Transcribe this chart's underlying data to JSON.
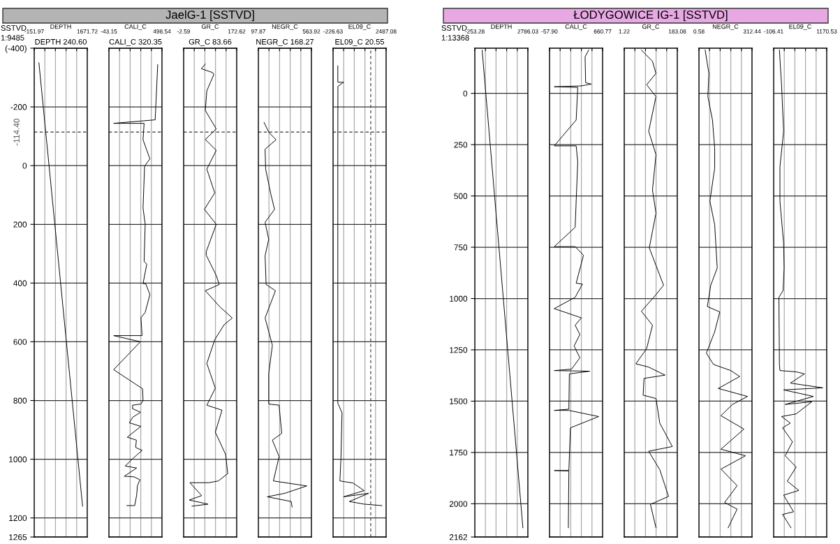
{
  "chart_data": [
    {
      "type": "line",
      "xlabel": "DEPTH",
      "subtitle": "DEPTH 240.60",
      "annotations": [
        "SSTVD",
        "1:9485"
      ],
      "xlim": [
        -151.97,
        1671.72
      ],
      "xticks": [
        {
          "value": -151.97,
          "label": "-151.97"
        },
        {
          "value": 212.77,
          "label": null
        },
        {
          "value": 577.51,
          "label": null
        },
        {
          "value": 942.24,
          "label": null
        },
        {
          "value": 1306.98,
          "label": null
        },
        {
          "value": 1671.72,
          "label": "1671.72"
        }
      ],
      "ylim": [
        1265,
        -400
      ],
      "yticks": [
        {
          "value": -400,
          "label": "(-400)"
        },
        -200,
        0,
        200,
        400,
        600,
        800,
        1000,
        1200,
        1265
      ],
      "grid": true,
      "ref_lines": [
        {
          "axis": "y",
          "value": -114.4,
          "label": "-114.40",
          "line_style": "dashed",
          "color": "#333333"
        }
      ],
      "series": [
        {
          "color": "#000000",
          "x": [
            10,
            1510
          ],
          "values": [
            -350,
            1160
          ]
        }
      ]
    },
    {
      "type": "line",
      "xlabel": "CALI_C",
      "subtitle": "CALI_C 320.35",
      "tick_labels": "x",
      "xlim": [
        -43.15,
        498.54
      ],
      "xticks": [
        {
          "value": -43.15,
          "label": "-43.15"
        },
        {
          "value": 65.19,
          "label": null
        },
        {
          "value": 173.53,
          "label": null
        },
        {
          "value": 281.86,
          "label": null
        },
        {
          "value": 390.2,
          "label": null
        },
        {
          "value": 498.54,
          "label": "498.54"
        }
      ],
      "ylim": [
        1265,
        -400
      ],
      "yticks": [
        -400,
        -200,
        0,
        200,
        400,
        600,
        800,
        1000,
        1200,
        1265
      ],
      "grid": true,
      "ref_lines": [
        {
          "axis": "y",
          "value": -114.4,
          "line_style": "dashed",
          "color": "#333333"
        }
      ],
      "series": [
        {
          "color": "#000000",
          "x": [
            455,
            429,
            5,
            316,
            305,
            375,
            321,
            305,
            327,
            316,
            343,
            305,
            332,
            375,
            327,
            284,
            295,
            5,
            278,
            5,
            300,
            305,
            284,
            198,
            198,
            280,
            200,
            165,
            283,
            144,
            237,
            230,
            295,
            213,
            123,
            240,
            113,
            213,
            273,
            248,
            240,
            220,
            140
          ],
          "values": [
            -344,
            -156,
            -144,
            -144,
            -88,
            -23,
            2,
            144,
            200,
            326,
            336,
            402,
            402,
            439,
            500,
            518,
            579,
            579,
            600,
            695,
            760,
            800,
            812,
            816,
            828,
            840,
            857,
            876,
            888,
            925,
            935,
            960,
            970,
            994,
            1023,
            1030,
            1058,
            1060,
            1070,
            1090,
            1122,
            1158,
            1158
          ]
        }
      ]
    },
    {
      "type": "line",
      "title": "JaelG-1 [SSTVD]",
      "xlabel": "GR_C",
      "subtitle": "GR_C 83.66",
      "tick_labels": "x",
      "xlim": [
        -2.59,
        172.62
      ],
      "xticks": [
        {
          "value": -2.59,
          "label": "-2.59"
        },
        {
          "value": 32.45,
          "label": null
        },
        {
          "value": 67.5,
          "label": null
        },
        {
          "value": 102.54,
          "label": null
        },
        {
          "value": 137.58,
          "label": null
        },
        {
          "value": 172.62,
          "label": "172.62"
        }
      ],
      "ylim": [
        1265,
        -400
      ],
      "yticks": [
        -400,
        -200,
        0,
        200,
        400,
        600,
        800,
        1000,
        1200,
        1265
      ],
      "grid": true,
      "ref_lines": [
        {
          "axis": "y",
          "value": -114.4,
          "line_style": "dashed",
          "color": "#333333"
        }
      ],
      "series": [
        {
          "color": "#000000",
          "x": [
            69,
            56,
            93,
            97,
            74,
            69,
            105,
            69,
            105,
            74,
            100,
            66,
            105,
            72,
            72,
            105,
            115,
            69,
            117,
            158,
            131,
            100,
            74,
            102,
            74,
            124,
            102,
            136,
            143,
            112,
            81,
            18,
            57,
            16,
            78,
            25
          ],
          "values": [
            -346,
            -330,
            -317,
            -310,
            -255,
            -188,
            -125,
            -89,
            -52,
            12,
            93,
            149,
            200,
            293,
            305,
            374,
            405,
            426,
            481,
            519,
            542,
            593,
            674,
            758,
            816,
            833,
            908,
            984,
            1049,
            1074,
            1080,
            1080,
            1124,
            1139,
            1153,
            1160
          ]
        }
      ]
    },
    {
      "type": "line",
      "xlabel": "NEGR_C",
      "subtitle": "NEGR_C 168.27",
      "tick_labels": "x",
      "xlim": [
        97.87,
        563.92
      ],
      "xticks": [
        {
          "value": 97.87,
          "label": "97.87"
        },
        {
          "value": 191.08,
          "label": null
        },
        {
          "value": 284.29,
          "label": null
        },
        {
          "value": 377.5,
          "label": null
        },
        {
          "value": 470.71,
          "label": null
        },
        {
          "value": 563.92,
          "label": "563.92"
        }
      ],
      "ylim": [
        1265,
        -400
      ],
      "yticks": [
        -400,
        -200,
        0,
        200,
        400,
        600,
        800,
        1000,
        1200,
        1265
      ],
      "grid": true,
      "ref_lines": [
        {
          "axis": "y",
          "value": -114.4,
          "line_style": "dashed",
          "color": "#333333"
        }
      ],
      "series": [
        {
          "color": "#000000",
          "x": [
            148,
            189,
            253,
            157,
            162,
            208,
            240,
            157,
            189,
            157,
            166,
            248,
            157,
            221,
            189,
            189,
            280,
            303,
            221,
            280,
            230,
            523,
            331,
            176,
            386,
            394
          ],
          "values": [
            -147,
            -114,
            -88,
            -56,
            12,
            98,
            149,
            193,
            251,
            307,
            405,
            426,
            519,
            612,
            709,
            812,
            816,
            912,
            935,
            991,
            1074,
            1091,
            1116,
            1128,
            1144,
            1163
          ]
        }
      ]
    },
    {
      "type": "line",
      "xlabel": "EL09_C",
      "subtitle": "EL09_C 20.55",
      "tick_labels": "x",
      "xlim": [
        -226.63,
        2487.08
      ],
      "xticks": [
        {
          "value": -226.63,
          "label": "-226.63"
        },
        {
          "value": 316.11,
          "label": null
        },
        {
          "value": 858.85,
          "label": null
        },
        {
          "value": 1401.6,
          "label": null
        },
        {
          "value": 1944.34,
          "label": null
        },
        {
          "value": 2487.08,
          "label": "2487.08"
        }
      ],
      "ylim": [
        1265,
        -400
      ],
      "yticks": [
        -400,
        -200,
        0,
        200,
        400,
        600,
        800,
        1000,
        1200,
        1265
      ],
      "grid": true,
      "ref_lines": [
        {
          "axis": "y",
          "value": -114.4,
          "line_style": "dashed",
          "color": "#333333"
        },
        {
          "axis": "x",
          "value": 1700,
          "line_style": "dashed",
          "color": "#333333"
        }
      ],
      "series": [
        {
          "color": "#000000",
          "x": [
            16,
            16,
            311,
            21,
            16,
            16,
            16,
            16,
            230,
            176,
            123,
            794,
            1360,
            311,
            1600,
            606,
            1360,
            2272
          ],
          "values": [
            -340,
            -284,
            -284,
            -270,
            -20,
            160,
            405,
            809,
            842,
            997,
            1074,
            1081,
            1107,
            1128,
            1116,
            1144,
            1153,
            1158
          ]
        }
      ]
    },
    {
      "type": "line",
      "xlabel": "DEPTH",
      "annotations": [
        "SSTVD",
        "1:13368"
      ],
      "xlim": [
        -253.28,
        2786.03
      ],
      "xticks": [
        {
          "value": -253.28,
          "label": "-253.28"
        },
        {
          "value": 354.58,
          "label": null
        },
        {
          "value": 962.44,
          "label": null
        },
        {
          "value": 1570.31,
          "label": null
        },
        {
          "value": 2178.17,
          "label": null
        },
        {
          "value": 2786.03,
          "label": "2786.03"
        }
      ],
      "ylim": [
        2162,
        -220
      ],
      "yticks": [
        0,
        250,
        500,
        750,
        1000,
        1250,
        1500,
        1750,
        2000,
        2162
      ],
      "grid": true,
      "series": [
        {
          "color": "#000000",
          "x": [
            166,
            2501
          ],
          "values": [
            -210,
            2117
          ]
        }
      ]
    },
    {
      "type": "line",
      "xlabel": "CALI_C",
      "tick_labels": "x",
      "xlim": [
        -57.9,
        660.77
      ],
      "xticks": [
        {
          "value": -57.9,
          "label": "-57.90"
        },
        {
          "value": 85.83,
          "label": null
        },
        {
          "value": 229.57,
          "label": null
        },
        {
          "value": 373.3,
          "label": null
        },
        {
          "value": 517.04,
          "label": null
        },
        {
          "value": 660.77,
          "label": "660.77"
        }
      ],
      "ylim": [
        2162,
        -220
      ],
      "yticks": [
        0,
        250,
        500,
        750,
        1000,
        1250,
        1500,
        1750,
        2000,
        2162
      ],
      "grid": true,
      "series": [
        {
          "color": "#000000",
          "x": [
            473,
            424,
            431,
            509,
            367,
            6,
            324,
            303,
            6,
            303,
            324,
            289,
            6,
            289,
            402,
            303,
            388,
            289,
            6,
            374,
            289,
            353,
            275,
            353,
            240,
            6,
            487,
            211,
            204,
            6,
            204,
            608,
            225,
            204,
            6,
            204,
            197
          ],
          "values": [
            -211,
            -178,
            -52,
            -45,
            -36,
            -32,
            -29,
            130,
            256,
            256,
            334,
            653,
            747,
            747,
            789,
            925,
            930,
            994,
            1049,
            1094,
            1130,
            1175,
            1231,
            1289,
            1344,
            1351,
            1354,
            1367,
            1539,
            1545,
            1545,
            1575,
            1630,
            1838,
            1838,
            1840,
            2117
          ]
        }
      ]
    },
    {
      "type": "line",
      "title": "ŁODYGOWICE IG-1 [SSTVD]",
      "xlabel": "GR_C",
      "tick_labels": "x",
      "xlim": [
        1.22,
        183.08
      ],
      "xticks": [
        {
          "value": 1.22,
          "label": "1.22"
        },
        {
          "value": 37.59,
          "label": null
        },
        {
          "value": 73.96,
          "label": null
        },
        {
          "value": 110.34,
          "label": null
        },
        {
          "value": 146.71,
          "label": null
        },
        {
          "value": 183.08,
          "label": "183.08"
        }
      ],
      "ylim": [
        2162,
        -220
      ],
      "yticks": [
        0,
        250,
        500,
        750,
        1000,
        1250,
        1500,
        1750,
        2000,
        2162
      ],
      "grid": true,
      "series": [
        {
          "color": "#000000",
          "x": [
            60,
            98,
            110,
            78,
            110,
            85,
            110,
            98,
            110,
            87,
            136,
            110,
            60,
            98,
            78,
            41,
            85,
            141,
            69,
            66,
            110,
            123,
            166,
            85,
            123,
            153,
            91,
            110
          ],
          "values": [
            -211,
            -156,
            -97,
            -42,
            16,
            185,
            299,
            471,
            584,
            753,
            935,
            981,
            1062,
            1130,
            1244,
            1318,
            1334,
            1373,
            1389,
            1471,
            1487,
            1607,
            1721,
            1744,
            1834,
            1964,
            2003,
            2117
          ]
        }
      ]
    },
    {
      "type": "line",
      "xlabel": "NEGR_C",
      "tick_labels": "x",
      "xlim": [
        0.58,
        312.44
      ],
      "xticks": [
        {
          "value": 0.58,
          "label": "0.58"
        },
        {
          "value": 62.95,
          "label": null
        },
        {
          "value": 125.32,
          "label": null
        },
        {
          "value": 187.7,
          "label": null
        },
        {
          "value": 250.07,
          "label": null
        },
        {
          "value": 312.44,
          "label": "312.44"
        }
      ],
      "ylim": [
        2162,
        -220
      ],
      "yticks": [
        0,
        250,
        500,
        750,
        1000,
        1250,
        1500,
        1750,
        2000,
        2162
      ],
      "grid": true,
      "series": [
        {
          "color": "#000000",
          "x": [
            37,
            59,
            53,
            80,
            93,
            93,
            65,
            93,
            108,
            70,
            50,
            123,
            93,
            44,
            86,
            188,
            240,
            114,
            286,
            197,
            130,
            265,
            130,
            274,
            130,
            225,
            151,
            225,
            172
          ],
          "values": [
            -211,
            -97,
            16,
            130,
            266,
            364,
            526,
            640,
            851,
            935,
            1039,
            1065,
            1162,
            1266,
            1321,
            1351,
            1380,
            1438,
            1477,
            1516,
            1571,
            1636,
            1734,
            1766,
            1831,
            1912,
            1994,
            2026,
            2117
          ]
        }
      ]
    },
    {
      "type": "line",
      "xlabel": "EL09_C",
      "tick_labels": "x",
      "xlim": [
        -106.41,
        1170.53
      ],
      "xticks": [
        {
          "value": -106.41,
          "label": "-106.41"
        },
        {
          "value": 148.98,
          "label": null
        },
        {
          "value": 404.37,
          "label": null
        },
        {
          "value": 659.76,
          "label": null
        },
        {
          "value": 915.14,
          "label": null
        },
        {
          "value": 1170.53,
          "label": "1170.53"
        }
      ],
      "ylim": [
        2162,
        -220
      ],
      "yticks": [
        0,
        250,
        500,
        750,
        1000,
        1250,
        1500,
        1750,
        2000,
        2162
      ],
      "grid": true,
      "series": [
        {
          "color": "#000000",
          "x": [
            32,
            83,
            133,
            45,
            45,
            133,
            145,
            120,
            20,
            32,
            45,
            435,
            636,
            296,
            1076,
            133,
            850,
            171,
            812,
            435,
            83,
            296,
            108,
            346,
            171,
            435,
            221,
            498,
            133,
            372,
            108,
            309
          ],
          "values": [
            -211,
            -42,
            185,
            357,
            526,
            730,
            851,
            961,
            994,
            1321,
            1351,
            1357,
            1367,
            1412,
            1435,
            1445,
            1477,
            1516,
            1503,
            1562,
            1575,
            1607,
            1630,
            1698,
            1766,
            1821,
            1890,
            1935,
            1958,
            2039,
            2052,
            2117
          ]
        }
      ]
    }
  ]
}
